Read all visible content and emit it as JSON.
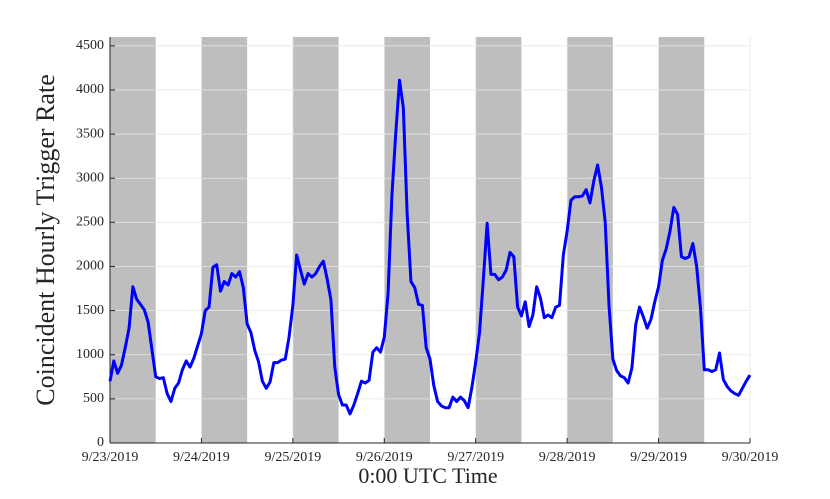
{
  "chart_data": {
    "type": "line",
    "x_label": "0:00 UTC Time",
    "y_label": "Coincident Hourly Trigger Rate",
    "categories": [
      "9/23/2019",
      null,
      null,
      null,
      null,
      null,
      null,
      null,
      null,
      null,
      null,
      null,
      null,
      null,
      null,
      null,
      null,
      null,
      null,
      null,
      null,
      null,
      null,
      null,
      "9/24/2019",
      null,
      null,
      null,
      null,
      null,
      null,
      null,
      null,
      null,
      null,
      null,
      null,
      null,
      null,
      null,
      null,
      null,
      null,
      null,
      null,
      null,
      null,
      null,
      "9/25/2019",
      null,
      null,
      null,
      null,
      null,
      null,
      null,
      null,
      null,
      null,
      null,
      null,
      null,
      null,
      null,
      null,
      null,
      null,
      null,
      null,
      null,
      null,
      null,
      "9/26/2019",
      null,
      null,
      null,
      null,
      null,
      null,
      null,
      null,
      null,
      null,
      null,
      null,
      null,
      null,
      null,
      null,
      null,
      null,
      null,
      null,
      null,
      null,
      null,
      "9/27/2019",
      null,
      null,
      null,
      null,
      null,
      null,
      null,
      null,
      null,
      null,
      null,
      null,
      null,
      null,
      null,
      null,
      null,
      null,
      null,
      null,
      null,
      null,
      null,
      "9/28/2019",
      null,
      null,
      null,
      null,
      null,
      null,
      null,
      null,
      null,
      null,
      null,
      null,
      null,
      null,
      null,
      null,
      null,
      null,
      null,
      null,
      null,
      null,
      null,
      "9/29/2019",
      null,
      null,
      null,
      null,
      null,
      null,
      null,
      null,
      null,
      null,
      null,
      null,
      null,
      null,
      null,
      null,
      null,
      null,
      null,
      null,
      null,
      null,
      null,
      "9/30/2019"
    ],
    "series": [
      {
        "color": "#0000ff",
        "values": [
          700,
          930,
          790,
          880,
          1080,
          1300,
          1770,
          1630,
          1570,
          1510,
          1370,
          1060,
          750,
          730,
          740,
          560,
          470,
          620,
          680,
          830,
          930,
          860,
          960,
          1100,
          1240,
          1500,
          1540,
          1990,
          2020,
          1720,
          1830,
          1790,
          1920,
          1880,
          1940,
          1760,
          1350,
          1250,
          1050,
          920,
          700,
          620,
          690,
          910,
          910,
          940,
          950,
          1200,
          1560,
          2130,
          1960,
          1800,
          1920,
          1880,
          1920,
          2000,
          2060,
          1860,
          1620,
          860,
          550,
          430,
          430,
          330,
          430,
          560,
          700,
          680,
          710,
          1030,
          1080,
          1030,
          1200,
          1700,
          2800,
          3500,
          4110,
          3800,
          2600,
          1830,
          1760,
          1570,
          1560,
          1080,
          950,
          650,
          470,
          420,
          400,
          400,
          520,
          470,
          520,
          480,
          400,
          630,
          920,
          1250,
          1850,
          2490,
          1910,
          1910,
          1850,
          1880,
          1960,
          2160,
          2110,
          1540,
          1440,
          1600,
          1320,
          1450,
          1770,
          1640,
          1420,
          1450,
          1420,
          1540,
          1560,
          2130,
          2400,
          2750,
          2790,
          2790,
          2800,
          2870,
          2720,
          2970,
          3150,
          2900,
          2500,
          1550,
          950,
          820,
          760,
          740,
          680,
          850,
          1340,
          1540,
          1430,
          1300,
          1400,
          1600,
          1770,
          2070,
          2200,
          2400,
          2670,
          2590,
          2110,
          2090,
          2110,
          2260,
          2000,
          1530,
          830,
          830,
          810,
          830,
          1020,
          720,
          640,
          590,
          560,
          540,
          620,
          700,
          770
        ]
      }
    ],
    "shaded_ranges": [
      [
        0,
        12
      ],
      [
        24,
        36
      ],
      [
        48,
        60
      ],
      [
        72,
        84
      ],
      [
        96,
        108
      ],
      [
        120,
        132
      ],
      [
        144,
        156
      ]
    ],
    "shade_color": "#bebebe",
    "ylim": [
      0,
      4600
    ],
    "yticks": [
      0,
      500,
      1000,
      1500,
      2000,
      2500,
      3000,
      3500,
      4000,
      4500
    ],
    "grid": true
  }
}
